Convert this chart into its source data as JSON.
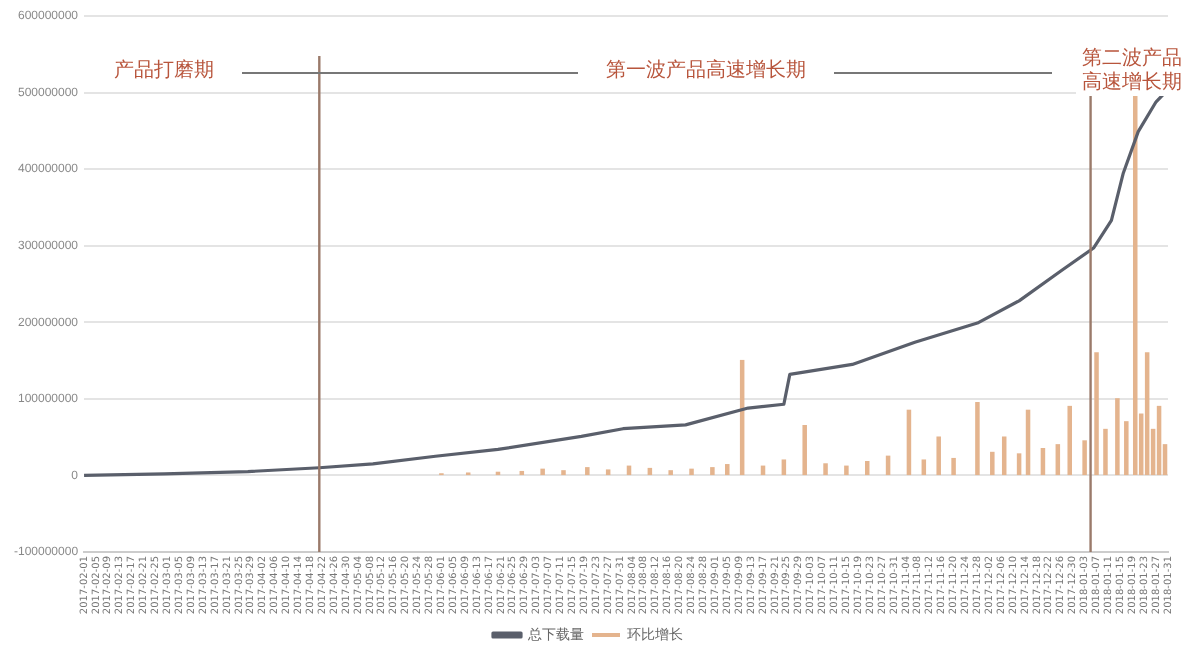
{
  "chart_data": {
    "type": "bar",
    "xlim": [
      "2017-02-01",
      "2018-01-31"
    ],
    "xticks": [
      "2017-02-01",
      "2017-02-05",
      "2017-02-09",
      "2017-02-13",
      "2017-02-17",
      "2017-02-21",
      "2017-02-25",
      "2017-03-01",
      "2017-03-05",
      "2017-03-09",
      "2017-03-13",
      "2017-03-17",
      "2017-03-21",
      "2017-03-25",
      "2017-03-29",
      "2017-04-02",
      "2017-04-06",
      "2017-04-10",
      "2017-04-14",
      "2017-04-18",
      "2017-04-22",
      "2017-04-26",
      "2017-04-30",
      "2017-05-04",
      "2017-05-08",
      "2017-05-12",
      "2017-05-16",
      "2017-05-20",
      "2017-05-24",
      "2017-05-28",
      "2017-06-01",
      "2017-06-05",
      "2017-06-09",
      "2017-06-13",
      "2017-06-17",
      "2017-06-21",
      "2017-06-25",
      "2017-06-29",
      "2017-07-03",
      "2017-07-07",
      "2017-07-11",
      "2017-07-15",
      "2017-07-19",
      "2017-07-23",
      "2017-07-27",
      "2017-07-31",
      "2017-08-04",
      "2017-08-08",
      "2017-08-12",
      "2017-08-16",
      "2017-08-20",
      "2017-08-24",
      "2017-08-28",
      "2017-09-01",
      "2017-09-05",
      "2017-09-09",
      "2017-09-13",
      "2017-09-17",
      "2017-09-21",
      "2017-09-25",
      "2017-09-29",
      "2017-10-03",
      "2017-10-07",
      "2017-10-11",
      "2017-10-15",
      "2017-10-19",
      "2017-10-23",
      "2017-10-27",
      "2017-10-31",
      "2017-11-04",
      "2017-11-08",
      "2017-11-12",
      "2017-11-16",
      "2017-11-20",
      "2017-11-24",
      "2017-11-28",
      "2017-12-02",
      "2017-12-06",
      "2017-12-10",
      "2017-12-14",
      "2017-12-18",
      "2017-12-22",
      "2017-12-26",
      "2017-12-30",
      "2018-01-03",
      "2018-01-07",
      "2018-01-11",
      "2018-01-15",
      "2018-01-19",
      "2018-01-23",
      "2018-01-27",
      "2018-01-31"
    ],
    "ylim": [
      -100000000,
      600000000
    ],
    "yticks": [
      -100000000,
      0,
      100000000,
      200000000,
      300000000,
      400000000,
      500000000,
      600000000
    ],
    "grid": "y",
    "legend": "bottom",
    "series": [
      {
        "name": "环比增长",
        "color": "#e4b48e",
        "x": [
          "2017-06-01",
          "2017-06-10",
          "2017-06-20",
          "2017-06-28",
          "2017-07-05",
          "2017-07-12",
          "2017-07-20",
          "2017-07-27",
          "2017-08-03",
          "2017-08-10",
          "2017-08-17",
          "2017-08-24",
          "2017-08-31",
          "2017-09-05",
          "2017-09-10",
          "2017-09-17",
          "2017-09-24",
          "2017-10-01",
          "2017-10-08",
          "2017-10-15",
          "2017-10-22",
          "2017-10-29",
          "2017-11-05",
          "2017-11-10",
          "2017-11-15",
          "2017-11-20",
          "2017-11-28",
          "2017-12-03",
          "2017-12-07",
          "2017-12-12",
          "2017-12-15",
          "2017-12-20",
          "2017-12-25",
          "2017-12-29",
          "2018-01-03",
          "2018-01-07",
          "2018-01-10",
          "2018-01-14",
          "2018-01-17",
          "2018-01-20",
          "2018-01-22",
          "2018-01-24",
          "2018-01-26",
          "2018-01-28",
          "2018-01-30"
        ],
        "values": [
          2000000,
          3000000,
          4000000,
          5000000,
          8000000,
          6000000,
          10000000,
          7000000,
          12000000,
          9000000,
          6000000,
          8000000,
          10000000,
          14000000,
          150000000,
          12000000,
          20000000,
          65000000,
          15000000,
          12000000,
          18000000,
          25000000,
          85000000,
          20000000,
          50000000,
          22000000,
          95000000,
          30000000,
          50000000,
          28000000,
          85000000,
          35000000,
          40000000,
          90000000,
          45000000,
          160000000,
          60000000,
          100000000,
          70000000,
          500000000,
          80000000,
          160000000,
          60000000,
          90000000,
          40000000
        ]
      },
      {
        "name": "总下载量",
        "type": "line",
        "color": "#5a5f6b",
        "x": [
          "2017-02-01",
          "2017-02-28",
          "2017-03-28",
          "2017-04-21",
          "2017-05-09",
          "2017-05-30",
          "2017-06-20",
          "2017-07-18",
          "2017-08-01",
          "2017-08-22",
          "2017-09-12",
          "2017-09-24",
          "2017-09-26",
          "2017-10-17",
          "2017-11-07",
          "2017-11-28",
          "2017-12-12",
          "2017-12-26",
          "2018-01-06",
          "2018-01-12",
          "2018-01-16",
          "2018-01-21",
          "2018-01-27",
          "2018-01-30"
        ],
        "values": [
          0,
          2000000,
          5000000,
          10000000,
          15000000,
          25000000,
          34000000,
          51000000,
          61000000,
          66000000,
          88000000,
          93000000,
          132000000,
          145000000,
          174000000,
          199000000,
          228000000,
          267000000,
          297000000,
          333000000,
          395000000,
          449000000,
          488000000,
          500000000
        ]
      }
    ],
    "ref_lines": [
      {
        "axis": "x",
        "value": "2017-04-21",
        "color": "#9a7a6a"
      },
      {
        "axis": "x",
        "value": "2018-01-05",
        "color": "#9a7a6a"
      }
    ],
    "annotations": [
      "产品打磨期",
      "第一波产品高速增长期",
      "第二波产品高速增长期"
    ]
  }
}
